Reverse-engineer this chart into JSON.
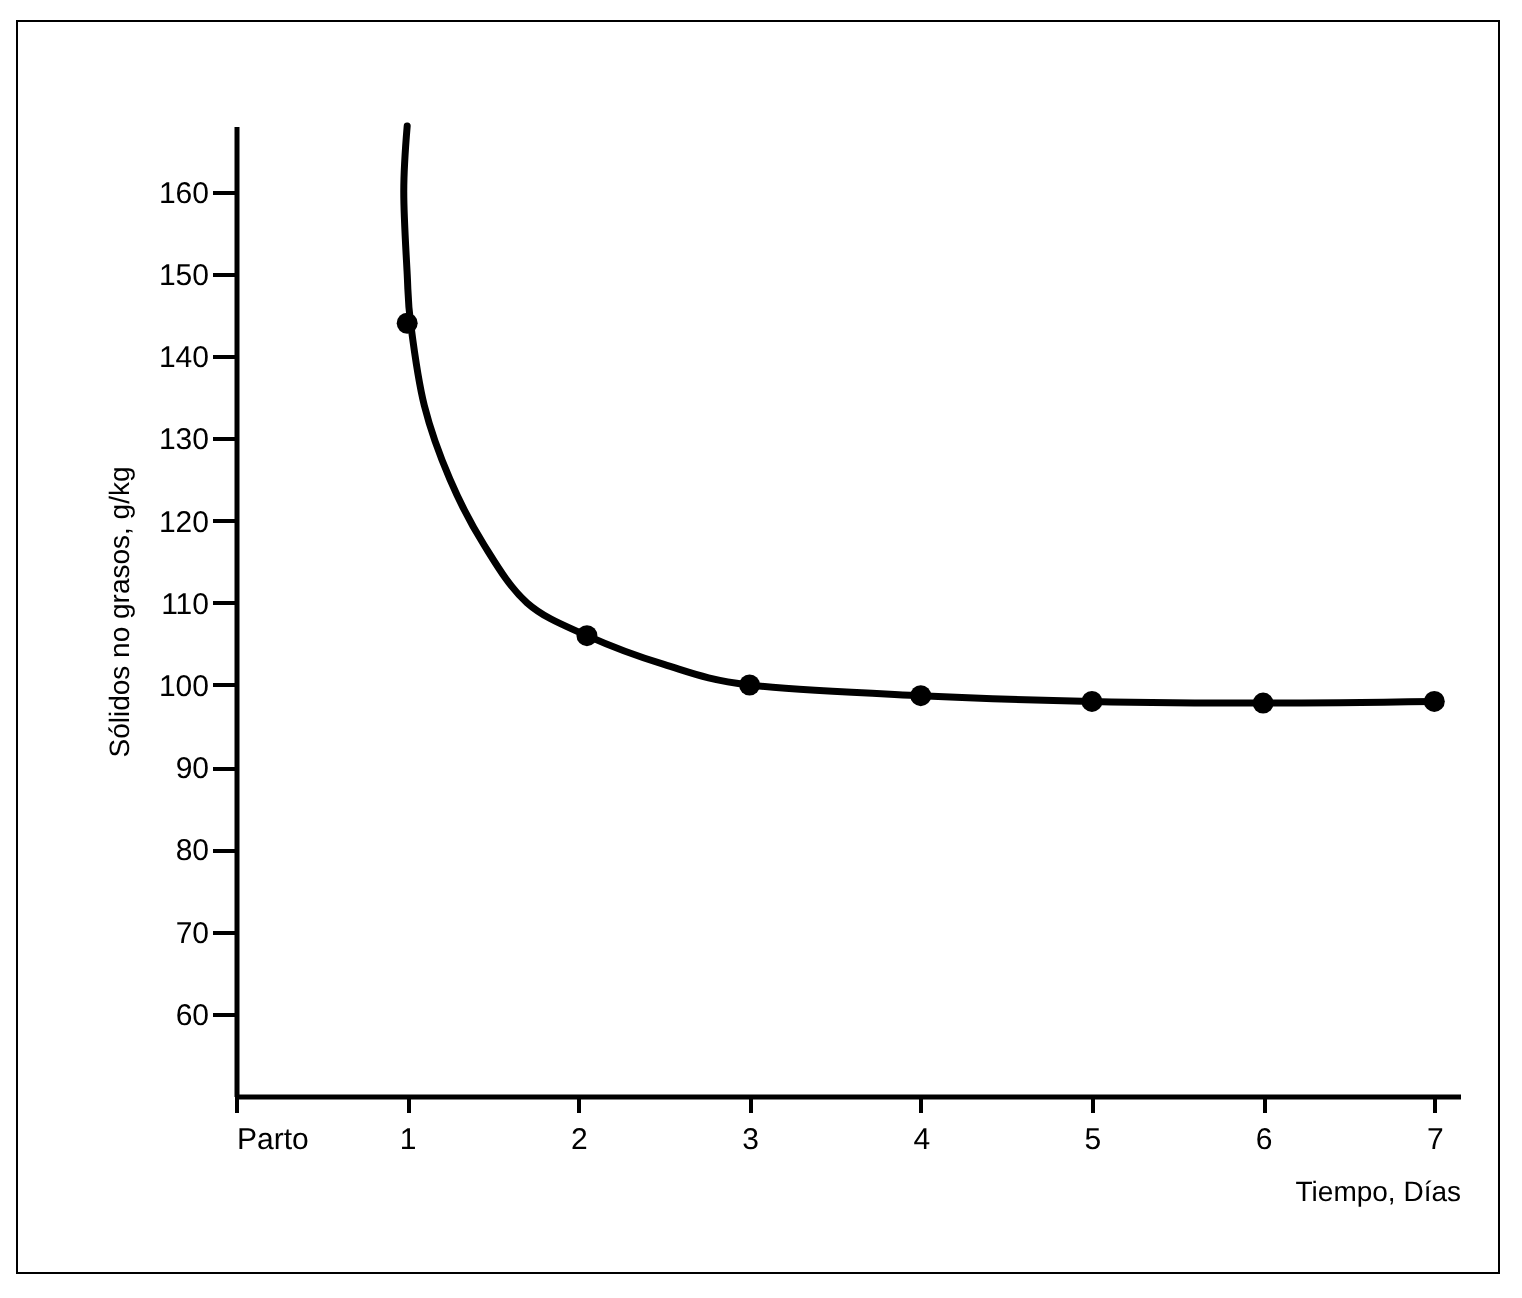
{
  "chart_data": {
    "type": "scatter",
    "xlabel": "Tiempo, Días",
    "ylabel": "Sólidos no grasos, g/kg",
    "x": [
      1,
      2.05,
      3,
      4,
      5,
      6,
      7
    ],
    "series": [
      {
        "type": "line",
        "color": "#000000",
        "marker": "none",
        "x": [
          1.0,
          0.98,
          1.0,
          1.02,
          1.1,
          1.25,
          1.45,
          1.7,
          2.05,
          2.5,
          3,
          4,
          5,
          6,
          7
        ],
        "values": [
          168,
          160,
          150,
          144,
          134,
          125,
          117,
          110,
          106,
          102.5,
          100,
          98.7,
          98,
          97.8,
          98
        ]
      },
      {
        "color": "#000000",
        "marker": "circle",
        "values": [
          144,
          106,
          100,
          98.7,
          98,
          97.8,
          98
        ]
      }
    ],
    "xlim": [
      0,
      7.15
    ],
    "xticks": [
      {
        "value": 0,
        "label": "Parto"
      },
      1,
      2,
      3,
      4,
      5,
      6,
      7
    ],
    "ylim": [
      50,
      168
    ],
    "yticks": [
      60,
      70,
      80,
      90,
      100,
      110,
      120,
      130,
      140,
      150,
      160
    ],
    "grid": false
  }
}
